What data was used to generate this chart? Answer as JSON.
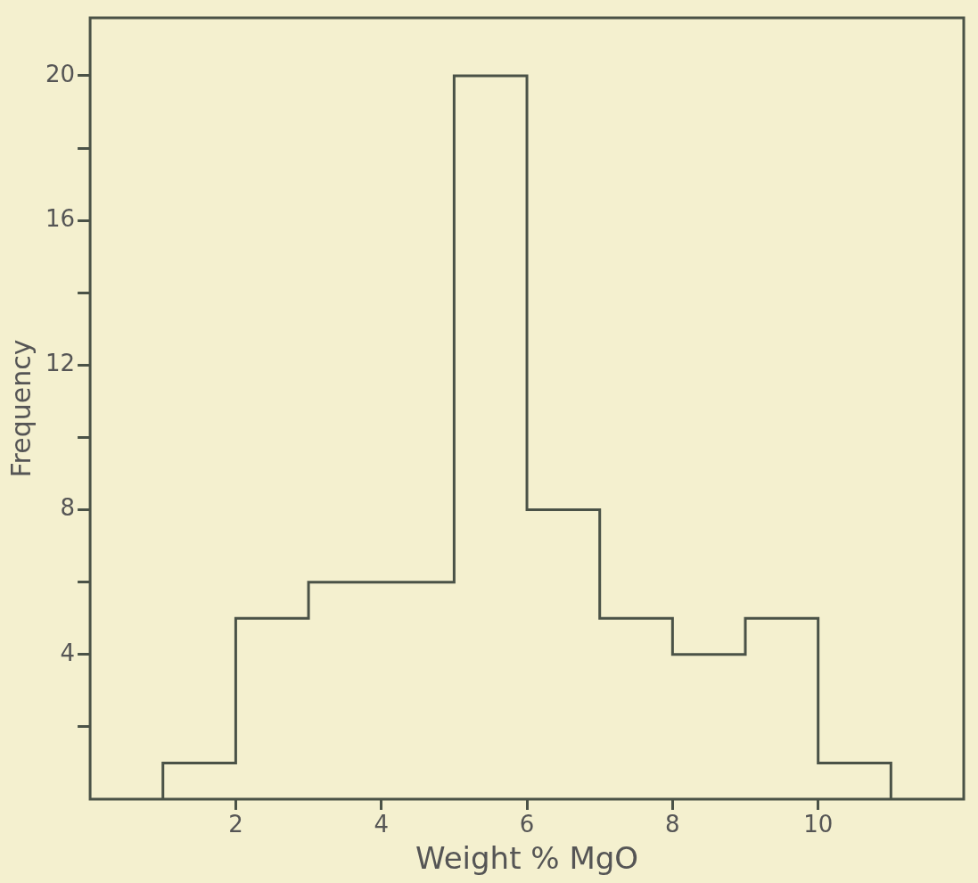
{
  "chart_data": {
    "type": "histogram",
    "xlabel": "Weight % MgO",
    "ylabel": "Frequency",
    "bins": [
      1,
      2,
      3,
      4,
      5,
      6,
      7,
      8,
      9,
      10,
      11
    ],
    "values": [
      1,
      5,
      6,
      6,
      20,
      8,
      5,
      4,
      5,
      1
    ],
    "color": "#4a5247",
    "xlim": [
      0,
      12
    ],
    "ylim": [
      0,
      21.6
    ],
    "xticks": [
      2,
      4,
      6,
      8,
      10
    ],
    "yticks": [
      {
        "value": 2,
        "label": null
      },
      4,
      {
        "value": 6,
        "label": null
      },
      8,
      {
        "value": 10,
        "label": null
      },
      12,
      {
        "value": 14,
        "label": null
      },
      16,
      {
        "value": 18,
        "label": null
      },
      20
    ]
  }
}
